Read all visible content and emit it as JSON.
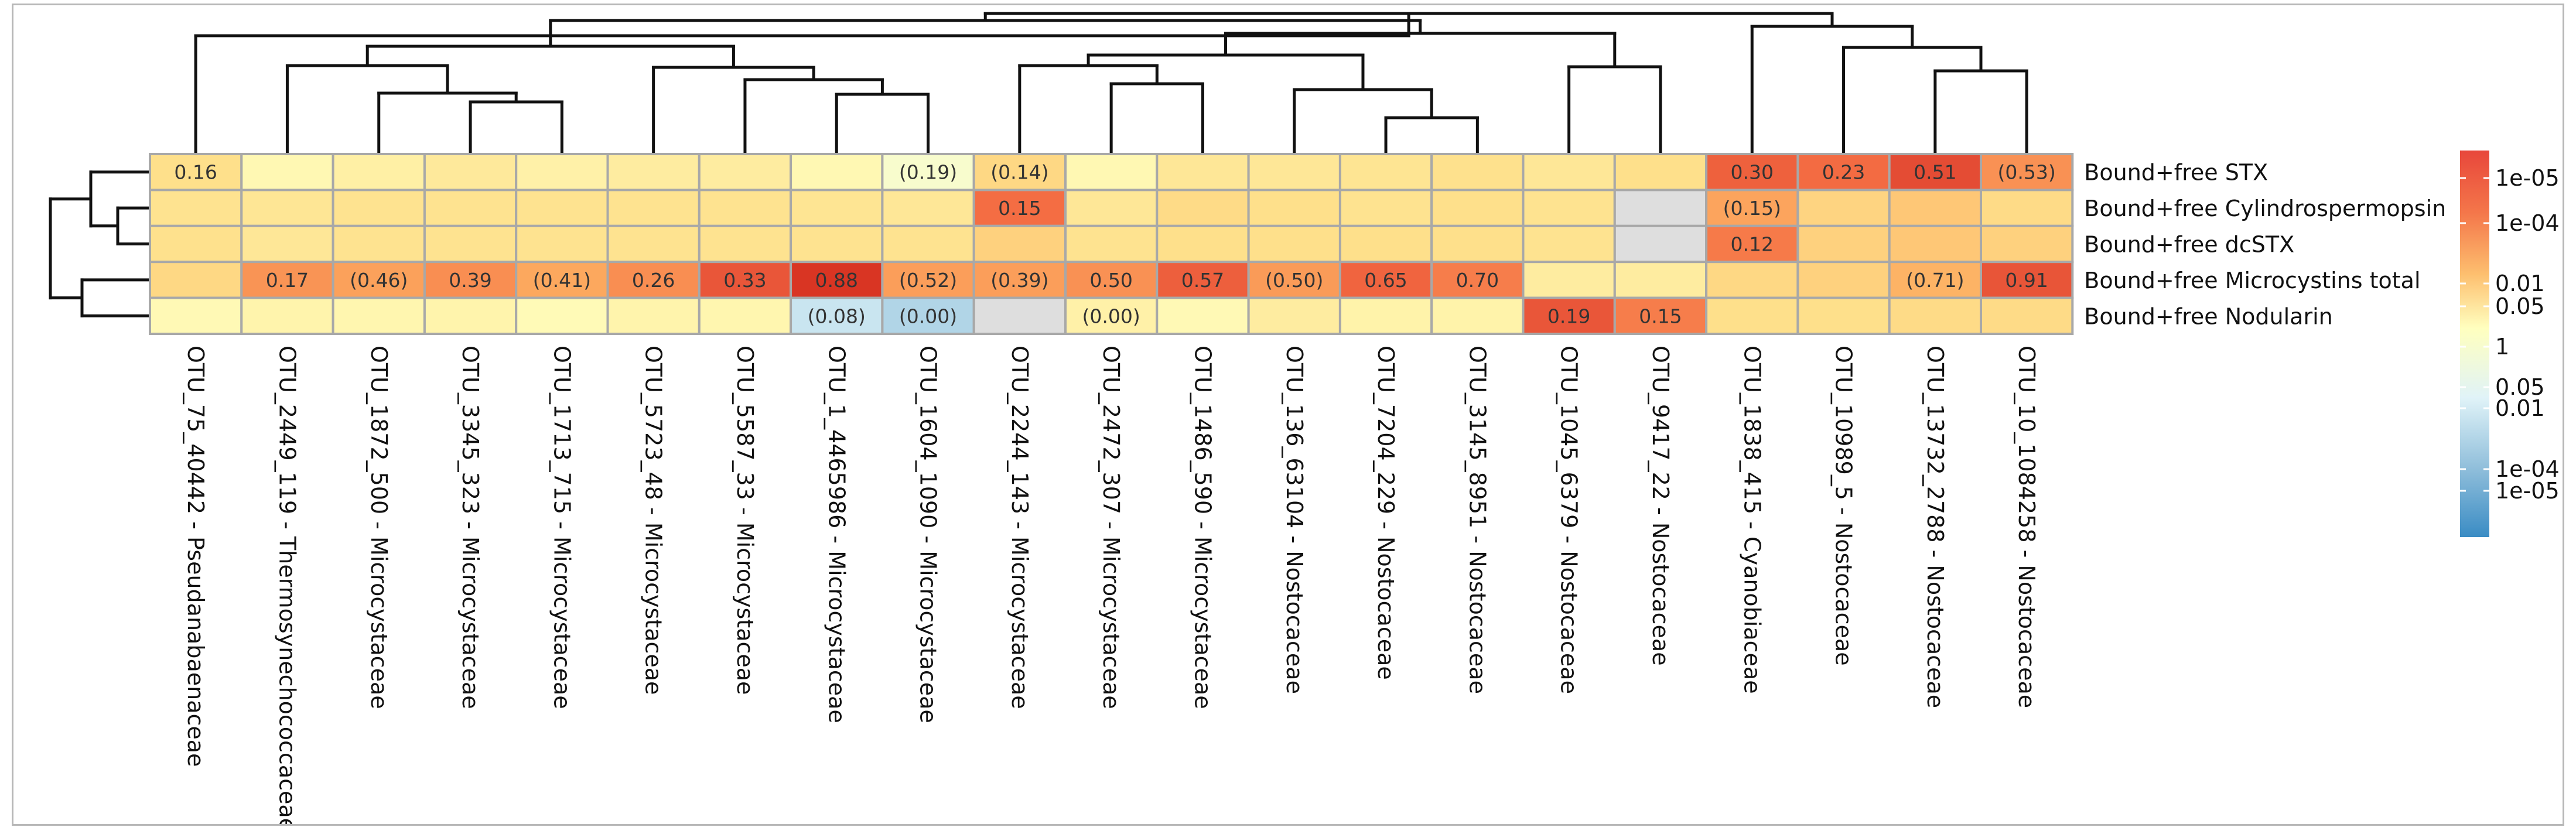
{
  "chart_data": {
    "type": "heatmap",
    "title": "",
    "columns": [
      "OTU_75_40442 - Pseudanabaenaceae",
      "OTU_2449_119 - Thermosynechococcaceae",
      "OTU_1872_500 - Microcystaceae",
      "OTU_3345_323 - Microcystaceae",
      "OTU_1713_715 - Microcystaceae",
      "OTU_5723_48 - Microcystaceae",
      "OTU_5587_33 - Microcystaceae",
      "OTU_1_4465986 - Microcystaceae",
      "OTU_1604_1090 - Microcystaceae",
      "OTU_2244_143 - Microcystaceae",
      "OTU_2472_307 - Microcystaceae",
      "OTU_1486_590 - Microcystaceae",
      "OTU_136_63104 - Nostocaceae",
      "OTU_7204_229 - Nostocaceae",
      "OTU_3145_8951 - Nostocaceae",
      "OTU_1045_6379 - Nostocaceae",
      "OTU_9417_22 - Nostocaceae",
      "OTU_1838_415 - Cyanobiaceae",
      "OTU_10989_5 - Nostocaceae",
      "OTU_13732_2788 - Nostocaceae",
      "OTU_10_1084258 - Nostocaceae"
    ],
    "rows": [
      "Bound+free STX",
      "Bound+free Cylindrospermopsin",
      "Bound+free dcSTX",
      "Bound+free Microcystins total",
      "Bound+free Nodularin"
    ],
    "cell_labels": [
      [
        "0.16",
        "",
        "",
        "",
        "",
        "",
        "",
        "",
        "(0.19)",
        "(0.14)",
        "",
        "",
        "",
        "",
        "",
        "",
        "",
        "0.30",
        "0.23",
        "0.51",
        "(0.53)"
      ],
      [
        "",
        "",
        "",
        "",
        "",
        "",
        "",
        "",
        "",
        "0.15",
        "",
        "",
        "",
        "",
        "",
        "",
        "",
        "(0.15)",
        "",
        "",
        ""
      ],
      [
        "",
        "",
        "",
        "",
        "",
        "",
        "",
        "",
        "",
        "",
        "",
        "",
        "",
        "",
        "",
        "",
        "",
        "0.12",
        "",
        "",
        ""
      ],
      [
        "",
        "0.17",
        "(0.46)",
        "0.39",
        "(0.41)",
        "0.26",
        "0.33",
        "0.88",
        "(0.52)",
        "(0.39)",
        "0.50",
        "0.57",
        "(0.50)",
        "0.65",
        "0.70",
        "",
        "",
        "",
        "",
        "(0.71)",
        "0.91"
      ],
      [
        "",
        "",
        "",
        "",
        "",
        "",
        "",
        "(0.08)",
        "(0.00)",
        "",
        "(0.00)",
        "",
        "",
        "",
        "",
        "0.19",
        "0.15",
        "",
        "",
        "",
        ""
      ]
    ],
    "color_scale": [
      [
        0.5,
        0.12,
        0.25,
        0.35,
        0.22,
        0.3,
        0.3,
        0.12,
        -0.12,
        0.58,
        0.12,
        0.38,
        0.38,
        0.42,
        0.48,
        0.38,
        0.5,
        2.35,
        2.05,
        2.95,
        1.45
      ],
      [
        0.45,
        0.4,
        0.45,
        0.45,
        0.45,
        0.45,
        0.45,
        0.42,
        0.38,
        2.0,
        0.38,
        0.55,
        0.5,
        0.45,
        0.5,
        0.45,
        null,
        1.15,
        0.62,
        0.75,
        0.55
      ],
      [
        0.48,
        0.38,
        0.45,
        0.45,
        0.45,
        0.45,
        0.45,
        0.45,
        0.45,
        0.65,
        0.45,
        0.5,
        0.5,
        0.5,
        0.5,
        0.45,
        null,
        1.8,
        0.65,
        0.75,
        0.65
      ],
      [
        0.58,
        1.4,
        1.2,
        1.5,
        1.1,
        1.5,
        2.65,
        3.8,
        1.25,
        1.25,
        1.45,
        2.4,
        1.3,
        2.25,
        1.75,
        0.3,
        0.3,
        0.58,
        0.65,
        0.95,
        2.7
      ],
      [
        0.1,
        0.18,
        0.15,
        0.18,
        0.08,
        0.18,
        0.15,
        -0.95,
        -1.4,
        null,
        0.22,
        0.1,
        0.3,
        0.2,
        0.2,
        2.65,
        1.75,
        0.5,
        0.5,
        0.55,
        0.55
      ]
    ],
    "legend": {
      "ticks_top": [
        "1e-05",
        "1e-04",
        "0.01",
        "0.05",
        "1"
      ],
      "ticks_bottom": [
        "0.05",
        "0.01",
        "1e-04",
        "1e-05"
      ]
    },
    "colors": {
      "high": "#e8473b",
      "mid": "#ffffbf",
      "low": "#3a8cc4",
      "missing": "#dedede",
      "grid": "#a8a8a8"
    }
  }
}
